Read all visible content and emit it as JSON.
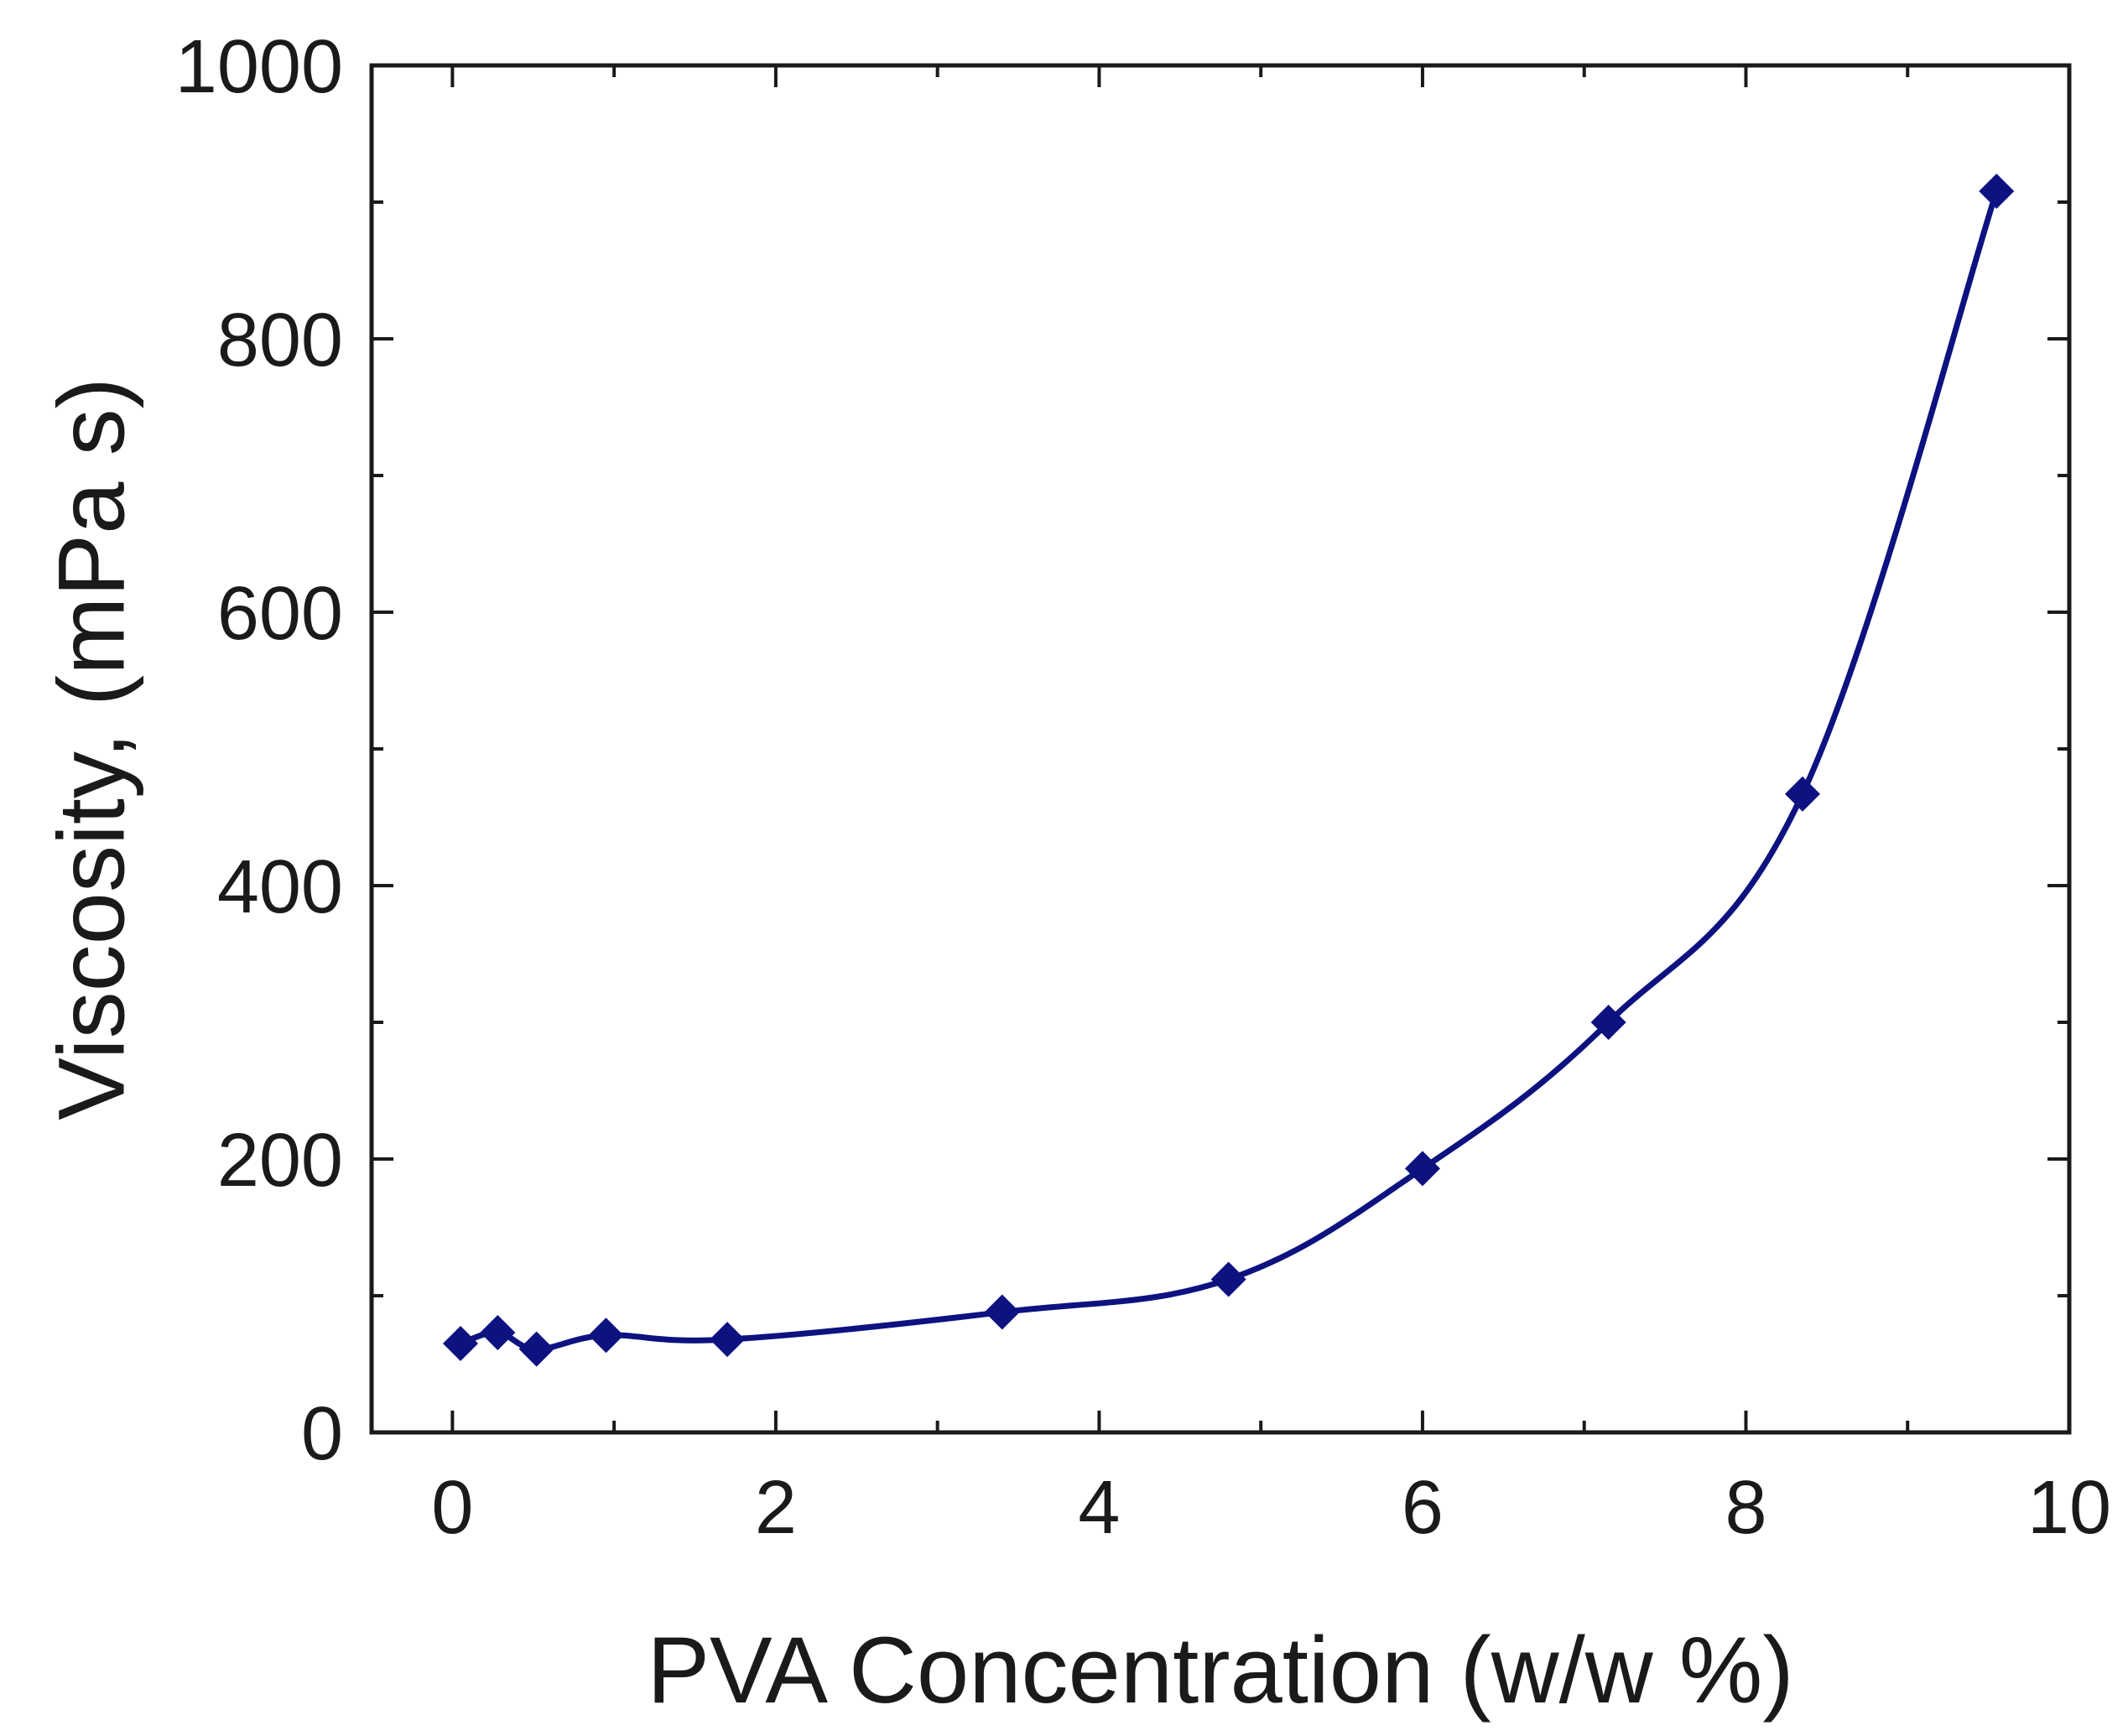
{
  "chart_data": {
    "type": "line",
    "title": "",
    "xlabel": "PVA Concentration (w/w %)",
    "ylabel": "Viscosity, (mPa s)",
    "xlim": [
      -0.5,
      10
    ],
    "ylim": [
      0,
      1000
    ],
    "xticks": [
      0,
      2,
      4,
      6,
      8,
      10
    ],
    "yticks": [
      0,
      200,
      400,
      600,
      800,
      1000
    ],
    "xtick_labels": [
      "0",
      "2",
      "4",
      "6",
      "8",
      "10"
    ],
    "ytick_labels": [
      "0",
      "200",
      "400",
      "600",
      "800",
      "1000"
    ],
    "grid": false,
    "marker": "diamond",
    "line": "smooth",
    "color": "#0d1280",
    "series": [
      {
        "x": [
          0.05,
          0.28,
          0.52,
          0.95,
          1.7,
          3.4,
          4.8,
          6.0,
          7.15,
          8.35,
          9.55
        ],
        "y": [
          65,
          73,
          61,
          71,
          68,
          88,
          112,
          193,
          300,
          467,
          908
        ]
      }
    ]
  }
}
